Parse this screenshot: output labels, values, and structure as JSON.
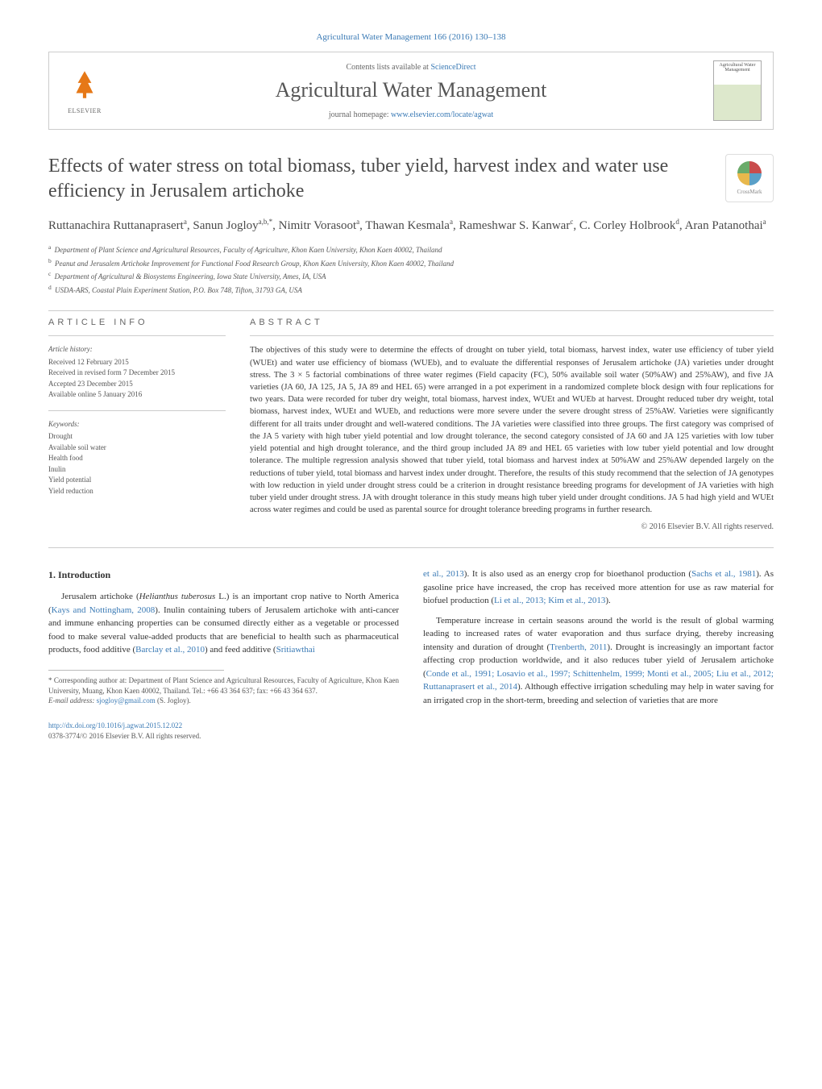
{
  "top_link": "Agricultural Water Management 166 (2016) 130–138",
  "header": {
    "contents_prefix": "Contents lists available at ",
    "contents_link": "ScienceDirect",
    "journal_name": "Agricultural Water Management",
    "homepage_prefix": "journal homepage: ",
    "homepage_url": "www.elsevier.com/locate/agwat",
    "cover_text": "Agricultural Water Management",
    "elsevier_brand": "ELSEVIER"
  },
  "crossmark": "CrossMark",
  "title": "Effects of water stress on total biomass, tuber yield, harvest index and water use efficiency in Jerusalem artichoke",
  "authors_html": "Ruttanachira Ruttanaprasert<sup>a</sup>, Sanun Jogloy<sup>a,b,*</sup>, Nimitr Vorasoot<sup>a</sup>, Thawan Kesmala<sup>a</sup>, Rameshwar S. Kanwar<sup>c</sup>, C. Corley Holbrook<sup>d</sup>, Aran Patanothai<sup>a</sup>",
  "affiliations": [
    {
      "sup": "a",
      "text": "Department of Plant Science and Agricultural Resources, Faculty of Agriculture, Khon Kaen University, Khon Kaen 40002, Thailand"
    },
    {
      "sup": "b",
      "text": "Peanut and Jerusalem Artichoke Improvement for Functional Food Research Group, Khon Kaen University, Khon Kaen 40002, Thailand"
    },
    {
      "sup": "c",
      "text": "Department of Agricultural & Biosystems Engineering, Iowa State University, Ames, IA, USA"
    },
    {
      "sup": "d",
      "text": "USDA-ARS, Coastal Plain Experiment Station, P.O. Box 748, Tifton, 31793 GA, USA"
    }
  ],
  "info": {
    "info_heading": "ARTICLE INFO",
    "abstract_heading": "ABSTRACT",
    "history_label": "Article history:",
    "history": [
      "Received 12 February 2015",
      "Received in revised form 7 December 2015",
      "Accepted 23 December 2015",
      "Available online 5 January 2016"
    ],
    "keywords_label": "Keywords:",
    "keywords": [
      "Drought",
      "Available soil water",
      "Health food",
      "Inulin",
      "Yield potential",
      "Yield reduction"
    ]
  },
  "abstract": "The objectives of this study were to determine the effects of drought on tuber yield, total biomass, harvest index, water use efficiency of tuber yield (WUEt) and water use efficiency of biomass (WUEb), and to evaluate the differential responses of Jerusalem artichoke (JA) varieties under drought stress. The 3 × 5 factorial combinations of three water regimes (Field capacity (FC), 50% available soil water (50%AW) and 25%AW), and five JA varieties (JA 60, JA 125, JA 5, JA 89 and HEL 65) were arranged in a pot experiment in a randomized complete block design with four replications for two years. Data were recorded for tuber dry weight, total biomass, harvest index, WUEt and WUEb at harvest. Drought reduced tuber dry weight, total biomass, harvest index, WUEt and WUEb, and reductions were more severe under the severe drought stress of 25%AW. Varieties were significantly different for all traits under drought and well-watered conditions. The JA varieties were classified into three groups. The first category was comprised of the JA 5 variety with high tuber yield potential and low drought tolerance, the second category consisted of JA 60 and JA 125 varieties with low tuber yield potential and high drought tolerance, and the third group included JA 89 and HEL 65 varieties with low tuber yield potential and low drought tolerance. The multiple regression analysis showed that tuber yield, total biomass and harvest index at 50%AW and 25%AW depended largely on the reductions of tuber yield, total biomass and harvest index under drought. Therefore, the results of this study recommend that the selection of JA genotypes with low reduction in yield under drought stress could be a criterion in drought resistance breeding programs for development of JA varieties with high tuber yield under drought stress. JA with drought tolerance in this study means high tuber yield under drought conditions. JA 5 had high yield and WUEt across water regimes and could be used as parental source for drought tolerance breeding programs in further research.",
  "copyright": "© 2016 Elsevier B.V. All rights reserved.",
  "section1_heading": "1. Introduction",
  "para1_pre": "Jerusalem artichoke (",
  "para1_ital": "Helianthus tuberosus",
  "para1_post": " L.) is an important crop native to North America (",
  "cite1": "Kays and Nottingham, 2008",
  "para1_cont": "). Inulin containing tubers of Jerusalem artichoke with anti-cancer and immune enhancing properties can be consumed directly either as a vegetable or processed food to make several value-added products that are beneficial to health such as pharmaceutical products, food additive (",
  "cite2": "Barclay et al., 2010",
  "para1_cont2": ") and feed additive (",
  "cite3": "Sritiawthai",
  "para2_pre": "et al., 2013",
  "para2_post": "). It is also used as an energy crop for bioethanol production (",
  "cite4": "Sachs et al., 1981",
  "para2_cont": "). As gasoline price have increased, the crop has received more attention for use as raw material for biofuel production (",
  "cite5": "Li et al., 2013; Kim et al., 2013",
  "para2_end": ").",
  "para3_pre": "Temperature increase in certain seasons around the world is the result of global warming leading to increased rates of water evaporation and thus surface drying, thereby increasing intensity and duration of drought (",
  "cite6": "Trenberth, 2011",
  "para3_cont": "). Drought is increasingly an important factor affecting crop production worldwide, and it also reduces tuber yield of Jerusalem artichoke (",
  "cite7": "Conde et al., 1991; Losavio et al., 1997; Schittenhelm, 1999; Monti et al., 2005; Liu et al., 2012; Ruttanaprasert et al., 2014",
  "para3_cont2": "). Although effective irrigation scheduling may help in water saving for an irrigated crop in the short-term, breeding and selection of varieties that are more",
  "footnote": {
    "corresp": "* Corresponding author at: Department of Plant Science and Agricultural Resources, Faculty of Agriculture, Khon Kaen University, Muang, Khon Kaen 40002, Thailand. Tel.: +66 43 364 637; fax: +66 43 364 637.",
    "email_label": "E-mail address: ",
    "email": "sjogloy@gmail.com",
    "email_suffix": " (S. Jogloy)."
  },
  "footer": {
    "doi": "http://dx.doi.org/10.1016/j.agwat.2015.12.022",
    "issn": "0378-3774/© 2016 Elsevier B.V. All rights reserved."
  },
  "colors": {
    "link": "#3a7ab5",
    "text": "#333333",
    "muted": "#666666",
    "orange": "#e67817",
    "border": "#cccccc"
  }
}
